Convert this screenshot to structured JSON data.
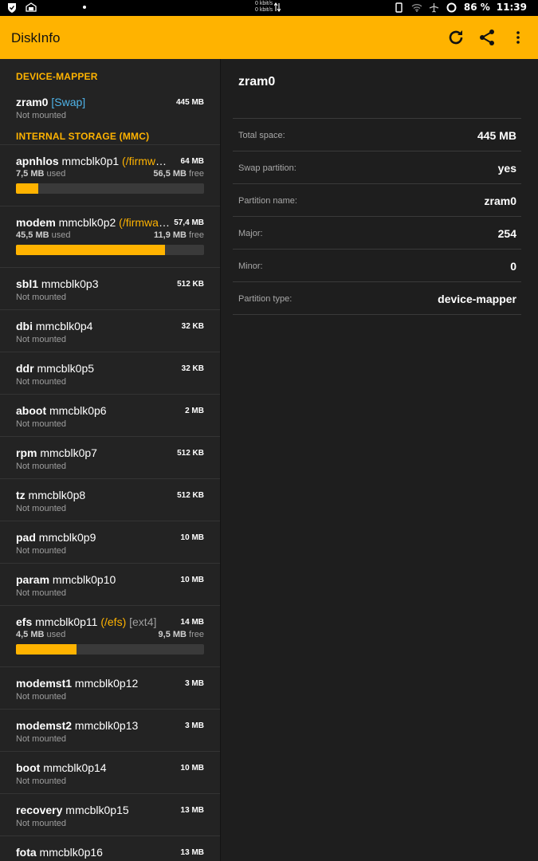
{
  "status_bar": {
    "speed_up": "0 kbit/s",
    "speed_down": "0 kbit/s",
    "battery": "86 %",
    "time": "11:39"
  },
  "app_bar": {
    "title": "DiskInfo",
    "icons": [
      "refresh-icon",
      "share-icon",
      "more-vert-icon"
    ]
  },
  "colors": {
    "accent": "#ffb300",
    "swap": "#4fb3e8"
  },
  "sections": {
    "device_mapper": "DEVICE-MAPPER",
    "internal": "INTERNAL STORAGE (MMC)"
  },
  "zram": {
    "name": "zram0",
    "tag": "[Swap]",
    "size": "445 MB",
    "status": "Not mounted"
  },
  "partitions": [
    {
      "name": "apnhlos",
      "dev": " mmcblk0p1",
      "mount": " (/firmware)",
      "fs": "",
      "size": "64 MB",
      "used": "7,5 MB",
      "used_suffix": " used",
      "free": "56,5 MB",
      "free_suffix": " free",
      "ratio": 0.117
    },
    {
      "name": "modem",
      "dev": " mmcblk0p2",
      "mount": " (/firmware-mdm)",
      "fs": "",
      "size": "57,4 MB",
      "used": "45,5 MB",
      "used_suffix": " used",
      "free": "11,9 MB",
      "free_suffix": " free",
      "ratio": 0.793
    },
    {
      "name": "sbl1",
      "dev": " mmcblk0p3",
      "size": "512 KB",
      "status": "Not mounted"
    },
    {
      "name": "dbi",
      "dev": " mmcblk0p4",
      "size": "32 KB",
      "status": "Not mounted"
    },
    {
      "name": "ddr",
      "dev": " mmcblk0p5",
      "size": "32 KB",
      "status": "Not mounted"
    },
    {
      "name": "aboot",
      "dev": " mmcblk0p6",
      "size": "2 MB",
      "status": "Not mounted"
    },
    {
      "name": "rpm",
      "dev": " mmcblk0p7",
      "size": "512 KB",
      "status": "Not mounted"
    },
    {
      "name": "tz",
      "dev": " mmcblk0p8",
      "size": "512 KB",
      "status": "Not mounted"
    },
    {
      "name": "pad",
      "dev": " mmcblk0p9",
      "size": "10 MB",
      "status": "Not mounted"
    },
    {
      "name": "param",
      "dev": " mmcblk0p10",
      "size": "10 MB",
      "status": "Not mounted"
    },
    {
      "name": "efs",
      "dev": " mmcblk0p11",
      "mount": " (/efs)",
      "fs": " [ext4]",
      "size": "14 MB",
      "used": "4,5 MB",
      "used_suffix": " used",
      "free": "9,5 MB",
      "free_suffix": " free",
      "ratio": 0.321
    },
    {
      "name": "modemst1",
      "dev": " mmcblk0p12",
      "size": "3 MB",
      "status": "Not mounted"
    },
    {
      "name": "modemst2",
      "dev": " mmcblk0p13",
      "size": "3 MB",
      "status": "Not mounted"
    },
    {
      "name": "boot",
      "dev": " mmcblk0p14",
      "size": "10 MB",
      "status": "Not mounted"
    },
    {
      "name": "recovery",
      "dev": " mmcblk0p15",
      "size": "13 MB",
      "status": "Not mounted"
    },
    {
      "name": "fota",
      "dev": " mmcblk0p16",
      "size": "13 MB",
      "status": ""
    }
  ],
  "detail": {
    "title": "zram0",
    "rows": [
      {
        "label": "Total space:",
        "value": "445 MB"
      },
      {
        "label": "Swap partition:",
        "value": "yes"
      },
      {
        "label": "Partition name:",
        "value": "zram0"
      },
      {
        "label": "Major:",
        "value": "254"
      },
      {
        "label": "Minor:",
        "value": "0"
      },
      {
        "label": "Partition type:",
        "value": "device-mapper"
      }
    ]
  }
}
